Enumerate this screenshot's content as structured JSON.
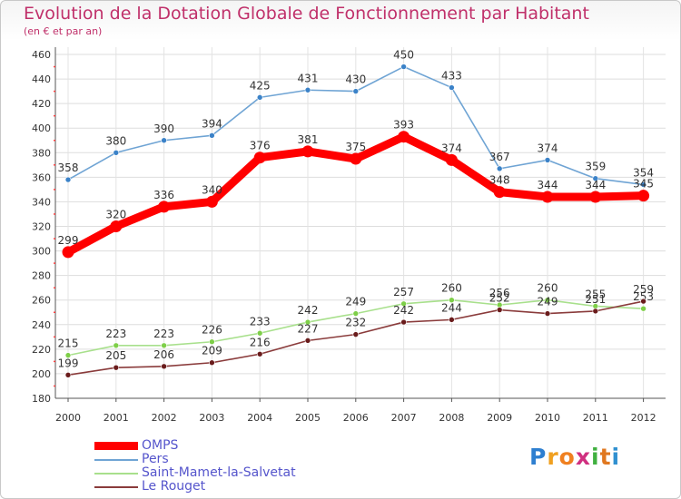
{
  "chart_data": {
    "type": "line",
    "title": "Evolution de la Dotation Globale de Fonctionnement par Habitant",
    "subtitle": "(en € et par an)",
    "xlabel": "",
    "ylabel": "",
    "ylim": [
      180,
      460
    ],
    "yticks": [
      180,
      200,
      220,
      240,
      260,
      280,
      300,
      320,
      340,
      360,
      380,
      400,
      420,
      440,
      460
    ],
    "categories": [
      "2000",
      "2001",
      "2002",
      "2003",
      "2004",
      "2005",
      "2006",
      "2007",
      "2008",
      "2009",
      "2010",
      "2011",
      "2012"
    ],
    "series": [
      {
        "name": "Pers",
        "color": "#6fa4d4",
        "marker": "#3b82c8",
        "values": [
          358,
          380,
          390,
          394,
          425,
          431,
          430,
          450,
          433,
          367,
          374,
          359,
          354
        ]
      },
      {
        "name": "Saint-Mamet-la-Salvetat",
        "color": "#a8e08c",
        "marker": "#7ecf48",
        "values": [
          215,
          223,
          223,
          226,
          233,
          242,
          249,
          257,
          260,
          256,
          260,
          255,
          253
        ]
      },
      {
        "name": "Le Rouget",
        "color": "#8a3b3b",
        "marker": "#6a1c1c",
        "values": [
          199,
          205,
          206,
          209,
          216,
          227,
          232,
          242,
          244,
          252,
          249,
          251,
          259
        ]
      },
      {
        "name": "OMPS",
        "color": "#ff0000",
        "marker": "#ff0000",
        "values": [
          299,
          320,
          336,
          340,
          376,
          381,
          375,
          393,
          374,
          348,
          344,
          344,
          345
        ]
      }
    ],
    "legend": [
      "OMPS",
      "Pers",
      "Saint-Mamet-la-Salvetat",
      "Le Rouget"
    ],
    "legend_placement": "bottom-left"
  },
  "legend_colors": {
    "OMPS": "#ff0000",
    "Pers": "#6fa4d4",
    "Saint-Mamet-la-Salvetat": "#a8e08c",
    "Le Rouget": "#8a3b3b"
  },
  "legend_text_color": "#5555cc",
  "brand": {
    "letters": [
      "P",
      "r",
      "o",
      "x",
      "i",
      "t",
      "i"
    ],
    "colors": [
      "#2e7fd0",
      "#f0a020",
      "#f08020",
      "#d03080",
      "#40b040",
      "#e07820",
      "#3090d0"
    ]
  }
}
